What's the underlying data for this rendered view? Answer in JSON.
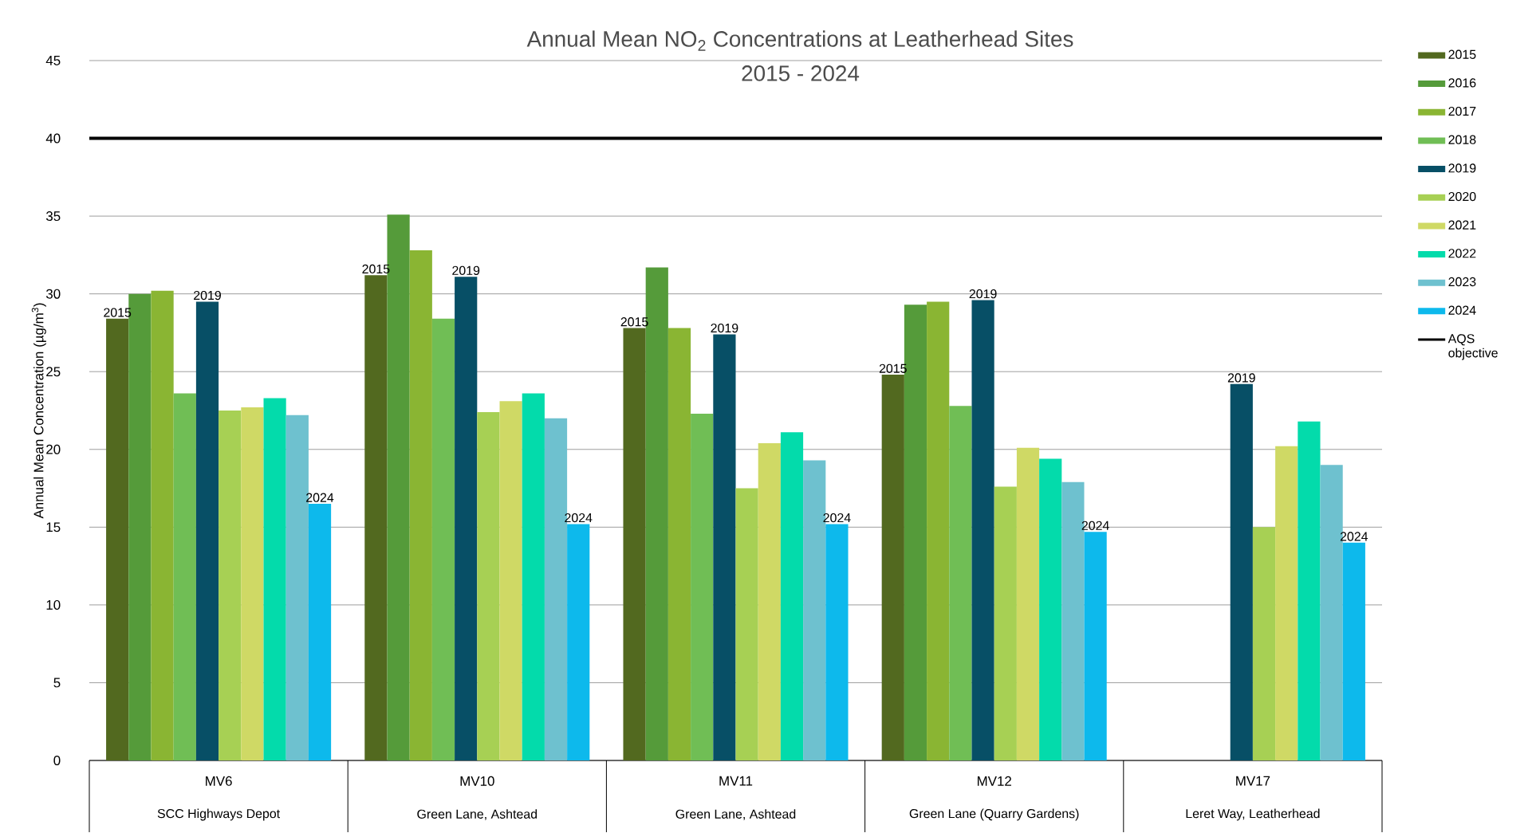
{
  "chart_data": {
    "type": "bar",
    "title": "Annual Mean NO$_{2}$ Concentrations at Leatherhead Sites",
    "subtitle": "2015 - 2024",
    "ylabel": "Annual Mean Concentration (µg/m$^{3}$)",
    "categories": [
      "MV6",
      "MV10",
      "MV11",
      "MV12",
      "MV17"
    ],
    "series": [
      {
        "name": "2015",
        "color": "#52691f",
        "values": [
          28.4,
          31.2,
          27.8,
          24.8,
          null
        ]
      },
      {
        "name": "2016",
        "color": "#559b3a",
        "values": [
          30.0,
          35.1,
          31.7,
          29.3,
          null
        ]
      },
      {
        "name": "2017",
        "color": "#8ab533",
        "values": [
          30.2,
          32.8,
          27.8,
          29.5,
          null
        ]
      },
      {
        "name": "2018",
        "color": "#70be55",
        "values": [
          23.6,
          28.4,
          22.3,
          22.8,
          null
        ]
      },
      {
        "name": "2019",
        "color": "#074f66",
        "values": [
          29.5,
          31.1,
          27.4,
          29.6,
          24.2
        ]
      },
      {
        "name": "2020",
        "color": "#a7d054",
        "values": [
          22.5,
          22.4,
          17.5,
          17.6,
          15.0
        ]
      },
      {
        "name": "2021",
        "color": "#cfd965",
        "values": [
          22.7,
          23.1,
          20.4,
          20.1,
          20.2
        ]
      },
      {
        "name": "2022",
        "color": "#03dbab",
        "values": [
          23.3,
          23.6,
          21.1,
          19.4,
          21.8
        ]
      },
      {
        "name": "2023",
        "color": "#6ec1cf",
        "values": [
          22.2,
          22.0,
          19.3,
          17.9,
          19.0
        ]
      },
      {
        "name": "2024",
        "color": "#0db9ec",
        "values": [
          16.5,
          15.2,
          15.2,
          14.7,
          14.0
        ]
      }
    ],
    "ylim": [
      0,
      45
    ],
    "yticks": [
      0,
      5,
      10,
      15,
      20,
      25,
      30,
      35,
      40,
      45
    ],
    "grid": "y",
    "legend": "right",
    "ref_lines": [
      {
        "axis": "y",
        "value": 40,
        "label": "AQS objective",
        "color": "#000000"
      }
    ],
    "annotations": [
      "SCC Highways Depot",
      "Green Lane, Ashtead",
      "Green Lane, Ashtead",
      "Green Lane (Quarry Gardens)",
      "Leret Way, Leatherhead",
      "2015",
      "2019",
      "2024",
      "2015",
      "2019",
      "2024",
      "2015",
      "2019",
      "2024",
      "2015",
      "2019",
      "2024",
      "2019",
      "2024"
    ]
  }
}
